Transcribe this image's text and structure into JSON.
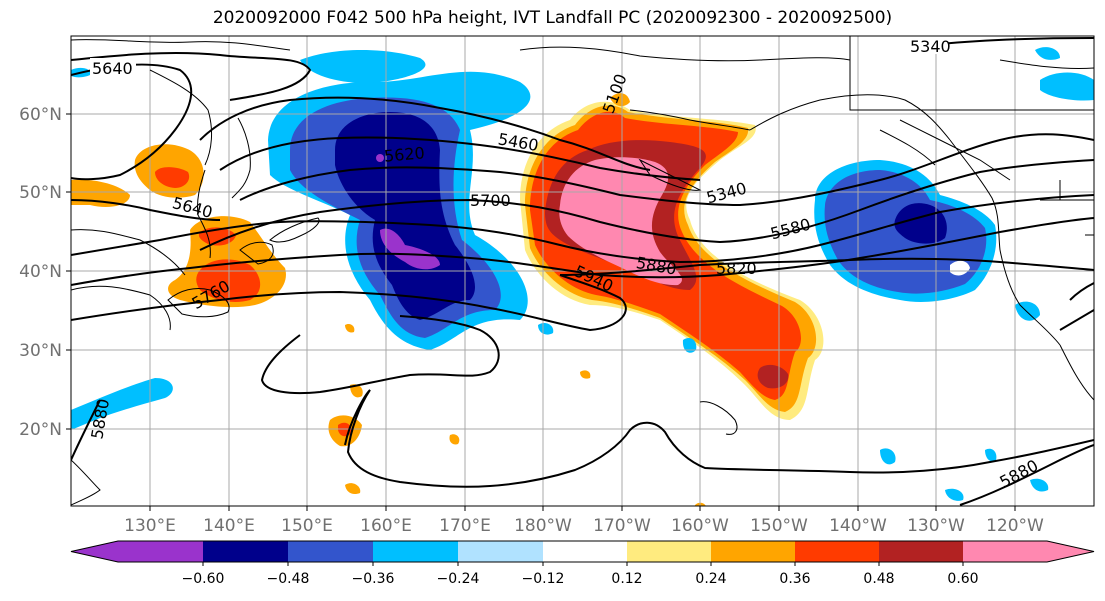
{
  "title": "2020092000 F042 500 hPa height, IVT Landfall PC (2020092300 - 2020092500)",
  "lon_labels": [
    "130°E",
    "140°E",
    "150°E",
    "160°E",
    "170°E",
    "180°W",
    "170°W",
    "160°W",
    "150°W",
    "140°W",
    "130°W",
    "120°W"
  ],
  "lat_labels": [
    "60°N",
    "50°N",
    "40°N",
    "30°N",
    "20°N"
  ],
  "contour_labels": {
    "c5340a": "5340",
    "c5640a": "5640",
    "c5100": "5100",
    "c5460": "5460",
    "c5620": "5620",
    "c5340b": "5340",
    "c5640b": "5640",
    "c5700": "5700",
    "c5580": "5580",
    "c5760": "5760",
    "c5880a": "5880",
    "c5820": "5820",
    "c5940": "5940",
    "c5880b": "5880",
    "c5880c": "5880"
  },
  "colorbar": {
    "tick_labels": [
      "−0.60",
      "−0.48",
      "−0.36",
      "−0.24",
      "−0.12",
      "0.12",
      "0.24",
      "0.36",
      "0.48",
      "0.60"
    ],
    "colors": [
      "#9a33cc",
      "#00008b",
      "#3355cc",
      "#00bfff",
      "#b0e2ff",
      "#ffffff",
      "#ffeb7f",
      "#ffa500",
      "#ff3b00",
      "#b22222",
      "#ff88b0"
    ]
  }
}
